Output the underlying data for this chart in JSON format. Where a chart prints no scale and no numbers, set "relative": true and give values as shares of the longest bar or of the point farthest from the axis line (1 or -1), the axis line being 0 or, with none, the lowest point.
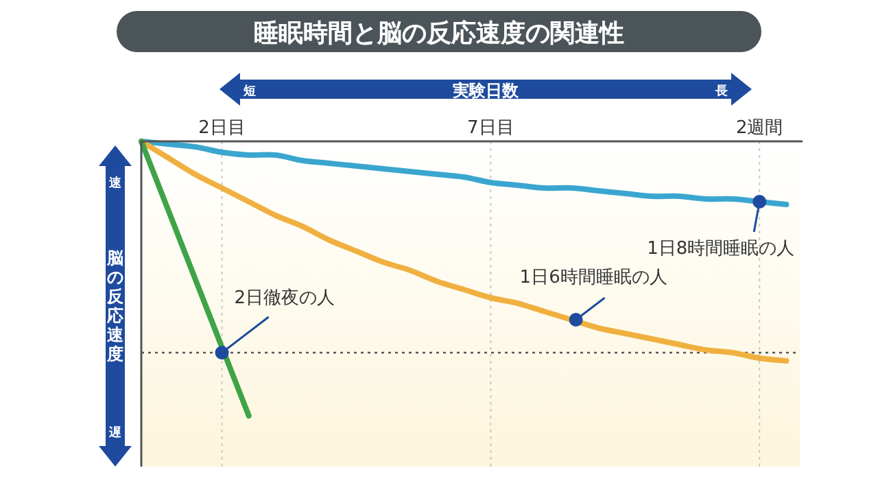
{
  "chart_data": {
    "type": "line",
    "title": "睡眠時間と脳の反応速度の関連性",
    "xlabel": "実験日数",
    "ylabel": "脳の反応速度",
    "relative": true,
    "categories": [
      null,
      null,
      null,
      "2日目",
      null,
      null,
      null,
      null,
      null,
      null,
      null,
      null,
      null,
      "7日目",
      null,
      null,
      null,
      null,
      null,
      null,
      null,
      null,
      null,
      "2週間",
      null
    ],
    "grid": "x",
    "line_style": "solid",
    "series": [
      {
        "color": "#3aa6d0",
        "values": [
          0,
          -0.01,
          -0.02,
          -0.04,
          -0.05,
          -0.05,
          -0.07,
          -0.08,
          -0.09,
          -0.1,
          -0.11,
          -0.12,
          -0.13,
          -0.15,
          -0.16,
          -0.17,
          -0.17,
          -0.18,
          -0.19,
          -0.2,
          -0.2,
          -0.21,
          -0.21,
          -0.22,
          -0.23
        ]
      },
      {
        "color": "#f0b040",
        "values": [
          0,
          -0.06,
          -0.12,
          -0.17,
          -0.22,
          -0.27,
          -0.31,
          -0.36,
          -0.4,
          -0.44,
          -0.47,
          -0.51,
          -0.54,
          -0.57,
          -0.59,
          -0.62,
          -0.65,
          -0.68,
          -0.7,
          -0.72,
          -0.74,
          -0.76,
          -0.77,
          -0.79,
          -0.8
        ]
      },
      {
        "color": "#3fa447",
        "values": [
          0,
          -0.25,
          -0.5,
          -0.75,
          -1,
          null,
          null,
          null,
          null,
          null,
          null,
          null,
          null,
          null,
          null,
          null,
          null,
          null,
          null,
          null,
          null,
          null,
          null,
          null,
          null
        ]
      }
    ],
    "ref_lines": [
      {
        "axis": "y",
        "value": -0.77,
        "color": "#555555",
        "line_style": "dotted"
      }
    ],
    "annotations": [
      {
        "text": "2日徹夜の人",
        "x": "2日目",
        "y": -0.77
      },
      {
        "text": "1日6時間睡眠の人",
        "y": -0.65
      },
      {
        "text": "1日8時間睡眠の人",
        "x": "2週間",
        "y": -0.22
      },
      "短",
      "長",
      "速",
      "遅"
    ]
  }
}
